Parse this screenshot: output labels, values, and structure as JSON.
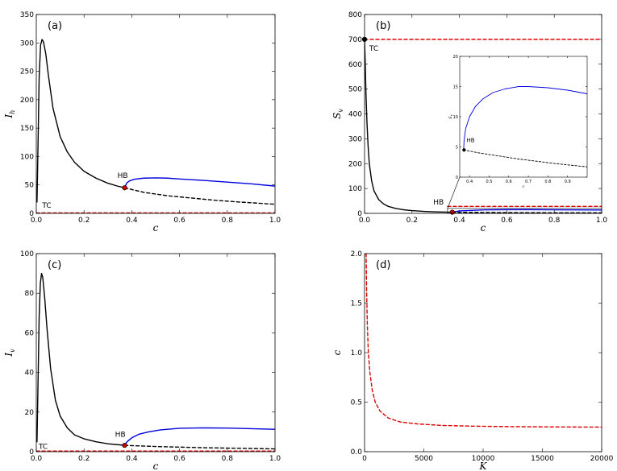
{
  "chart_data": [
    {
      "id": "a",
      "type": "line",
      "panel_label": "(a)",
      "xlabel": "c",
      "ylabel": "I_h",
      "xlim": [
        0,
        1.0
      ],
      "ylim": [
        0,
        350
      ],
      "xticks": [
        0.0,
        0.2,
        0.4,
        0.6,
        0.8,
        1.0
      ],
      "xtick_labels": [
        "0.0",
        "0.2",
        "0.4",
        "0.6",
        "0.8",
        "1.0"
      ],
      "yticks": [
        0,
        50,
        100,
        150,
        200,
        250,
        300,
        350
      ],
      "ytick_labels": [
        "0",
        "50",
        "100",
        "150",
        "200",
        "250",
        "300",
        "350"
      ],
      "series": [
        {
          "name": "stable-branch",
          "color": "#000000",
          "dash": "solid",
          "x": [
            0.003,
            0.008,
            0.012,
            0.018,
            0.024,
            0.03,
            0.04,
            0.05,
            0.07,
            0.1,
            0.13,
            0.16,
            0.2,
            0.25,
            0.3,
            0.34,
            0.37
          ],
          "y": [
            20,
            140,
            240,
            296,
            306,
            302,
            280,
            245,
            185,
            135,
            108,
            90,
            74,
            62,
            53,
            48,
            45
          ]
        },
        {
          "name": "periodic-branch",
          "color": "#0000dd",
          "dash": "solid",
          "x": [
            0.37,
            0.375,
            0.38,
            0.39,
            0.41,
            0.45,
            0.5,
            0.55,
            0.6,
            0.7,
            0.8,
            0.9,
            1.0
          ],
          "y": [
            45,
            50,
            54,
            57,
            60,
            62,
            62.5,
            62,
            60.5,
            58,
            55,
            52,
            48
          ]
        },
        {
          "name": "unstable-branch",
          "color": "#000000",
          "dash": "dashed",
          "x": [
            0.37,
            0.45,
            0.55,
            0.65,
            0.75,
            0.85,
            1.0
          ],
          "y": [
            45,
            37,
            31,
            27,
            23,
            20,
            16
          ]
        },
        {
          "name": "disease-free",
          "color": "#dd0000",
          "dash": "dashed",
          "x": [
            0,
            1.0
          ],
          "y": [
            0.8,
            0.8
          ]
        }
      ],
      "points": [
        {
          "x": 0.37,
          "y": 45,
          "color": "#cc0000"
        }
      ],
      "annotations": [
        {
          "text": "HB",
          "x": 0.34,
          "y": 62
        },
        {
          "text": "TC",
          "x": 0.025,
          "y": 10
        }
      ]
    },
    {
      "id": "b",
      "type": "line",
      "panel_label": "(b)",
      "xlabel": "c",
      "ylabel": "S_v",
      "xlim": [
        0,
        1.0
      ],
      "ylim": [
        0,
        800
      ],
      "xticks": [
        0.0,
        0.2,
        0.4,
        0.6,
        0.8,
        1.0
      ],
      "xtick_labels": [
        "0.0",
        "0.2",
        "0.4",
        "0.6",
        "0.8",
        "1.0"
      ],
      "yticks": [
        0,
        100,
        200,
        300,
        400,
        500,
        600,
        700,
        800
      ],
      "ytick_labels": [
        "0",
        "100",
        "200",
        "300",
        "400",
        "500",
        "600",
        "700",
        "800"
      ],
      "series": [
        {
          "name": "stable-branch",
          "color": "#000000",
          "dash": "solid",
          "x": [
            0.0,
            0.003,
            0.006,
            0.01,
            0.015,
            0.02,
            0.03,
            0.04,
            0.06,
            0.08,
            0.1,
            0.13,
            0.16,
            0.2,
            0.25,
            0.3,
            0.37
          ],
          "y": [
            700,
            600,
            480,
            370,
            270,
            200,
            130,
            90,
            55,
            38,
            28,
            20,
            15,
            11,
            8,
            6,
            4.5
          ]
        },
        {
          "name": "periodic-branch",
          "color": "#0000dd",
          "dash": "solid",
          "x": [
            0.37,
            0.4,
            0.5,
            0.6,
            0.7,
            0.8,
            0.9,
            1.0
          ],
          "y": [
            4.5,
            10,
            14,
            15,
            15,
            14.5,
            14,
            13.5
          ]
        },
        {
          "name": "unstable-branch",
          "color": "#000000",
          "dash": "dashed",
          "x": [
            0.37,
            0.5,
            0.7,
            1.0
          ],
          "y": [
            4.5,
            3.5,
            2.5,
            2
          ]
        },
        {
          "name": "disease-free",
          "color": "#dd0000",
          "dash": "dashed",
          "x": [
            0.0,
            1.0
          ],
          "y": [
            700,
            700
          ]
        },
        {
          "name": "disease-free-low",
          "color": "#dd0000",
          "dash": "dashed",
          "x": [
            0.35,
            1.0
          ],
          "y": [
            28,
            28
          ]
        }
      ],
      "points": [
        {
          "x": 0.0,
          "y": 700,
          "color": "#000000"
        },
        {
          "x": 0.37,
          "y": 4.5,
          "color": "#cc0000"
        }
      ],
      "annotations": [
        {
          "text": "TC",
          "x": 0.02,
          "y": 655
        },
        {
          "text": "HB",
          "x": 0.29,
          "y": 36
        }
      ],
      "inset": {
        "xlim": [
          0.35,
          1.0
        ],
        "ylim": [
          0,
          20
        ],
        "xticks": [
          0.4,
          0.5,
          0.6,
          0.7,
          0.8,
          0.9
        ],
        "xtick_labels": [
          "0.4",
          "0.5",
          "0.6",
          "0.7",
          "0.8",
          "0.9"
        ],
        "yticks": [
          0,
          5,
          10,
          15,
          20
        ],
        "ytick_labels": [
          "0",
          "5",
          "10",
          "15",
          "20"
        ],
        "xlabel": "c",
        "ylabel": "S_v",
        "series": [
          {
            "name": "inset-periodic",
            "color": "#0000dd",
            "dash": "solid",
            "x": [
              0.37,
              0.372,
              0.38,
              0.4,
              0.43,
              0.47,
              0.52,
              0.58,
              0.65,
              0.7,
              0.8,
              0.9,
              1.0
            ],
            "y": [
              4.5,
              6,
              8,
              10,
              11.7,
              13,
              14,
              14.6,
              15,
              15,
              14.8,
              14.4,
              13.8
            ]
          },
          {
            "name": "inset-unstable",
            "color": "#000000",
            "dash": "dashed",
            "x": [
              0.37,
              0.45,
              0.55,
              0.65,
              0.75,
              0.85,
              1.0
            ],
            "y": [
              4.5,
              4.0,
              3.5,
              3.0,
              2.6,
              2.2,
              1.7
            ]
          }
        ],
        "points": [
          {
            "x": 0.372,
            "y": 4.5,
            "color": "#000000"
          }
        ],
        "annotations": [
          {
            "text": "HB",
            "x": 0.385,
            "y": 5.8
          }
        ]
      }
    },
    {
      "id": "c",
      "type": "line",
      "panel_label": "(c)",
      "xlabel": "c",
      "ylabel": "I_v",
      "xlim": [
        0,
        1.0
      ],
      "ylim": [
        0,
        100
      ],
      "xticks": [
        0.0,
        0.2,
        0.4,
        0.6,
        0.8,
        1.0
      ],
      "xtick_labels": [
        "0.0",
        "0.2",
        "0.4",
        "0.6",
        "0.8",
        "1.0"
      ],
      "yticks": [
        0,
        20,
        40,
        60,
        80,
        100
      ],
      "ytick_labels": [
        "0",
        "20",
        "40",
        "60",
        "80",
        "100"
      ],
      "series": [
        {
          "name": "stable-branch",
          "color": "#000000",
          "dash": "solid",
          "x": [
            0.003,
            0.008,
            0.012,
            0.017,
            0.022,
            0.027,
            0.035,
            0.045,
            0.06,
            0.08,
            0.1,
            0.13,
            0.16,
            0.2,
            0.25,
            0.3,
            0.37
          ],
          "y": [
            5,
            40,
            68,
            85,
            90,
            88,
            78,
            62,
            42,
            26,
            18,
            12,
            8.5,
            6.5,
            5,
            4,
            3.2
          ]
        },
        {
          "name": "periodic-branch",
          "color": "#0000dd",
          "dash": "solid",
          "x": [
            0.37,
            0.38,
            0.4,
            0.43,
            0.47,
            0.52,
            0.6,
            0.7,
            0.8,
            0.9,
            1.0
          ],
          "y": [
            3.2,
            5,
            7,
            8.8,
            10,
            11,
            11.8,
            12,
            11.9,
            11.6,
            11.3
          ]
        },
        {
          "name": "unstable-branch",
          "color": "#000000",
          "dash": "dashed",
          "x": [
            0.37,
            0.5,
            0.6,
            0.7,
            0.8,
            0.9,
            1.0
          ],
          "y": [
            3.2,
            2.6,
            2.3,
            2.0,
            1.8,
            1.6,
            1.4
          ]
        },
        {
          "name": "disease-free",
          "color": "#dd0000",
          "dash": "dashed",
          "x": [
            0,
            1.0
          ],
          "y": [
            0.3,
            0.3
          ]
        }
      ],
      "points": [
        {
          "x": 0.37,
          "y": 3.2,
          "color": "#cc0000"
        }
      ],
      "annotations": [
        {
          "text": "HB",
          "x": 0.33,
          "y": 7.5
        },
        {
          "text": "TC",
          "x": 0.01,
          "y": 1.5
        }
      ]
    },
    {
      "id": "d",
      "type": "line",
      "panel_label": "(d)",
      "xlabel": "K",
      "ylabel": "c",
      "xlim": [
        0,
        20000
      ],
      "ylim": [
        0,
        2.0
      ],
      "xticks": [
        0,
        5000,
        10000,
        15000,
        20000
      ],
      "xtick_labels": [
        "0",
        "5000",
        "10000",
        "15000",
        "20000"
      ],
      "yticks": [
        0.0,
        0.5,
        1.0,
        1.5,
        2.0
      ],
      "ytick_labels": [
        "0.0",
        "0.5",
        "1.0",
        "1.5",
        "2.0"
      ],
      "series": [
        {
          "name": "hopf-curve",
          "color": "#dd0000",
          "dash": "dashed",
          "x": [
            130,
            170,
            230,
            320,
            450,
            650,
            900,
            1300,
            2000,
            3000,
            4500,
            6500,
            9000,
            12000,
            16000,
            20000
          ],
          "y": [
            2.0,
            1.65,
            1.3,
            1.0,
            0.8,
            0.62,
            0.5,
            0.41,
            0.34,
            0.3,
            0.28,
            0.265,
            0.258,
            0.253,
            0.25,
            0.248
          ]
        }
      ],
      "points": [],
      "annotations": []
    }
  ]
}
